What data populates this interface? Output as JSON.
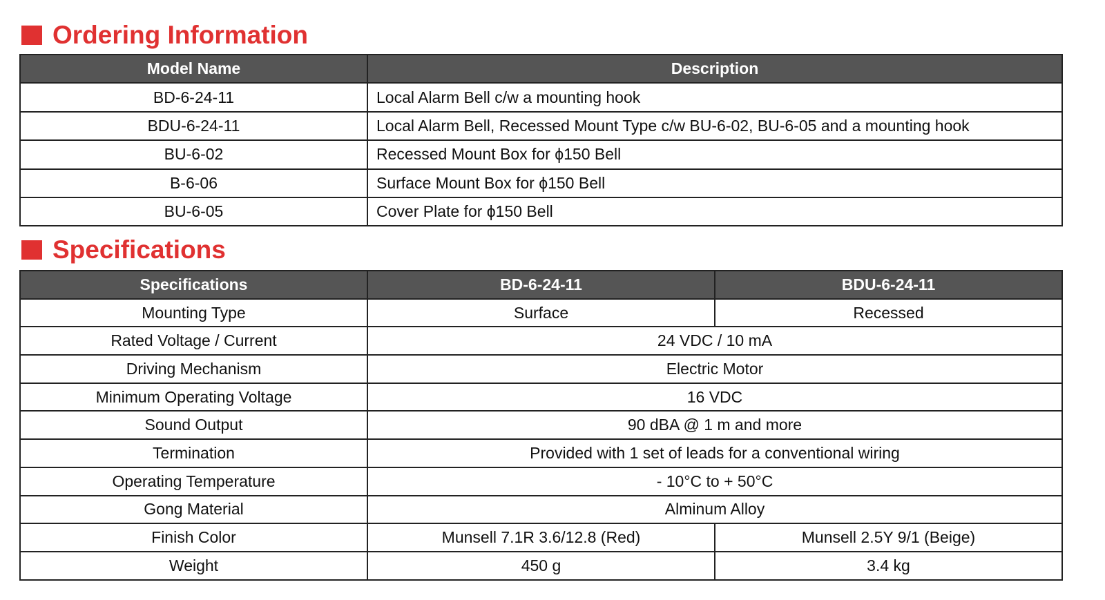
{
  "ordering": {
    "title": "Ordering Information",
    "headers": [
      "Model Name",
      "Description"
    ],
    "rows": [
      {
        "model": "BD-6-24-11",
        "description": "Local Alarm Bell c/w a mounting hook"
      },
      {
        "model": "BDU-6-24-11",
        "description": "Local Alarm Bell, Recessed Mount Type c/w BU-6-02, BU-6-05 and a mounting hook"
      },
      {
        "model": "BU-6-02",
        "description": "Recessed Mount Box for ϕ150 Bell"
      },
      {
        "model": "B-6-06",
        "description": "Surface Mount Box for ϕ150 Bell"
      },
      {
        "model": "BU-6-05",
        "description": "Cover Plate for ϕ150 Bell"
      }
    ]
  },
  "specifications": {
    "title": "Specifications",
    "headers": [
      "Specifications",
      "BD-6-24-11",
      "BDU-6-24-11"
    ],
    "rows": [
      {
        "label": "Mounting Type",
        "bd": "Surface",
        "bdu": "Recessed"
      },
      {
        "label": "Rated Voltage / Current",
        "both": "24 VDC / 10 mA"
      },
      {
        "label": "Driving Mechanism",
        "both": "Electric Motor"
      },
      {
        "label": "Minimum Operating Voltage",
        "both": "16 VDC"
      },
      {
        "label": "Sound Output",
        "both": "90 dBA @ 1 m and more"
      },
      {
        "label": "Termination",
        "both": "Provided with 1 set of leads for a conventional wiring"
      },
      {
        "label": "Operating Temperature",
        "both": "- 10°C  to  + 50°C"
      },
      {
        "label": "Gong Material",
        "both": "Alminum Alloy"
      },
      {
        "label": "Finish Color",
        "bd": "Munsell 7.1R 3.6/12.8 (Red)",
        "bdu": "Munsell 2.5Y 9/1 (Beige)"
      },
      {
        "label": "Weight",
        "bd": "450 g",
        "bdu": "3.4 kg"
      }
    ]
  },
  "colors": {
    "accent": "#e03131",
    "header_bg": "#555555"
  }
}
